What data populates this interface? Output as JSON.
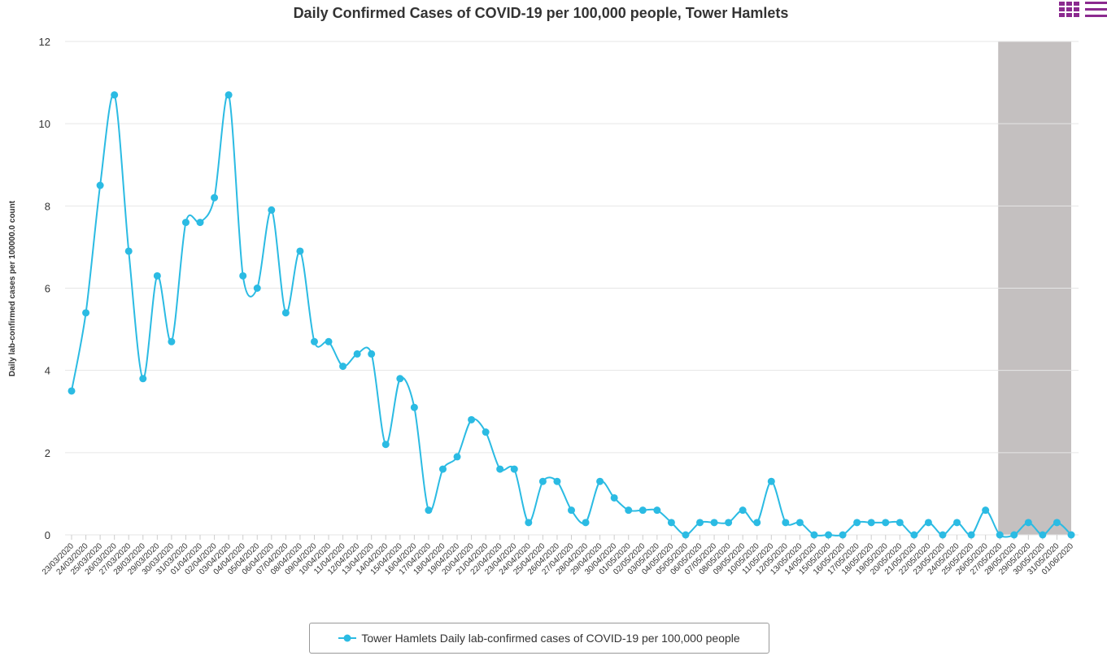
{
  "chart_data": {
    "type": "line",
    "title": "Daily Confirmed Cases of COVID-19 per 100,000 people, Tower Hamlets",
    "xlabel": "",
    "ylabel": "Daily lab-confirmed cases per 100000.0 count",
    "ylim": [
      0,
      12
    ],
    "y_ticks": [
      0,
      2,
      4,
      6,
      8,
      10,
      12
    ],
    "grid": "horizontal",
    "legend_placement": "bottom-center",
    "categories": [
      "23/03/2020",
      "24/03/2020",
      "25/03/2020",
      "26/03/2020",
      "27/03/2020",
      "28/03/2020",
      "29/03/2020",
      "30/03/2020",
      "31/03/2020",
      "01/04/2020",
      "02/04/2020",
      "03/04/2020",
      "04/04/2020",
      "05/04/2020",
      "06/04/2020",
      "07/04/2020",
      "08/04/2020",
      "09/04/2020",
      "10/04/2020",
      "11/04/2020",
      "12/04/2020",
      "13/04/2020",
      "14/04/2020",
      "15/04/2020",
      "16/04/2020",
      "17/04/2020",
      "18/04/2020",
      "19/04/2020",
      "20/04/2020",
      "21/04/2020",
      "22/04/2020",
      "23/04/2020",
      "24/04/2020",
      "25/04/2020",
      "26/04/2020",
      "27/04/2020",
      "28/04/2020",
      "29/04/2020",
      "30/04/2020",
      "01/05/2020",
      "02/05/2020",
      "03/05/2020",
      "04/05/2020",
      "05/05/2020",
      "06/05/2020",
      "07/05/2020",
      "08/05/2020",
      "09/05/2020",
      "10/05/2020",
      "11/05/2020",
      "12/05/2020",
      "13/05/2020",
      "14/05/2020",
      "15/05/2020",
      "16/05/2020",
      "17/05/2020",
      "18/05/2020",
      "19/05/2020",
      "20/05/2020",
      "21/05/2020",
      "22/05/2020",
      "23/05/2020",
      "24/05/2020",
      "25/05/2020",
      "26/05/2020",
      "27/05/2020",
      "28/05/2020",
      "29/05/2020",
      "30/05/2020",
      "31/05/2020",
      "01/06/2020"
    ],
    "series": [
      {
        "name": "Tower Hamlets Daily lab-confirmed cases of COVID-19 per 100,000 people",
        "color": "#2bbbe3",
        "values": [
          3.5,
          5.4,
          8.5,
          10.7,
          6.9,
          3.8,
          6.3,
          4.7,
          7.6,
          7.6,
          8.2,
          10.7,
          6.3,
          6.0,
          7.9,
          5.4,
          6.9,
          4.7,
          4.7,
          4.1,
          4.4,
          4.4,
          2.2,
          3.8,
          3.1,
          0.6,
          1.6,
          1.9,
          2.8,
          2.5,
          1.6,
          1.6,
          0.3,
          1.3,
          1.3,
          0.6,
          0.3,
          1.3,
          0.9,
          0.6,
          0.6,
          0.6,
          0.3,
          0.0,
          0.3,
          0.3,
          0.3,
          0.6,
          0.3,
          1.3,
          0.3,
          0.3,
          0.0,
          0.0,
          0.0,
          0.3,
          0.3,
          0.3,
          0.3,
          0.0,
          0.3,
          0.0,
          0.3,
          0.0,
          0.6,
          0.0,
          0.0,
          0.3,
          0.0,
          0.3,
          0.0
        ]
      }
    ],
    "shaded_region": {
      "from": "27/05/2020",
      "to": "01/06/2020",
      "color": "#c4c0c0"
    }
  },
  "ui": {
    "menu_icon": "chart-menu-icon"
  }
}
